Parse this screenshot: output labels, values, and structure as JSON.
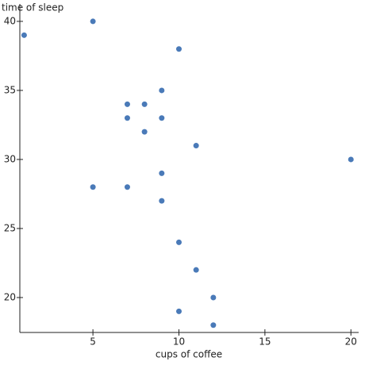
{
  "chart_data": {
    "type": "scatter",
    "x_label": "cups of coffee",
    "y_label": "time of sleep",
    "x": [
      1,
      5,
      10,
      9,
      7,
      8,
      7,
      9,
      8,
      11,
      20,
      9,
      5,
      7,
      9,
      10,
      11,
      12,
      10,
      12
    ],
    "values": [
      39,
      40,
      38,
      35,
      34,
      34,
      33,
      33,
      32,
      31,
      30,
      29,
      28,
      28,
      27,
      24,
      22,
      20,
      19,
      18
    ],
    "color": "#4a7ab8",
    "xlim": [
      0.75,
      20.45
    ],
    "ylim": [
      17.47,
      41.26
    ],
    "xticks": [
      5,
      10,
      15,
      20
    ],
    "yticks": [
      20,
      25,
      30,
      35,
      40
    ]
  }
}
